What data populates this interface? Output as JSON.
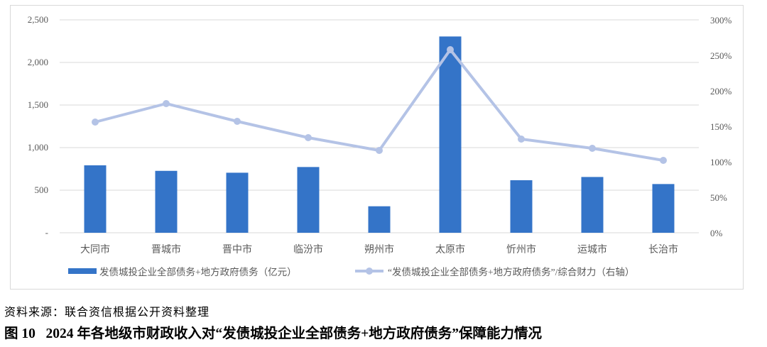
{
  "chart_data": {
    "type": "bar+line",
    "categories": [
      "大同市",
      "晋城市",
      "晋中市",
      "临汾市",
      "朔州市",
      "太原市",
      "忻州市",
      "运城市",
      "长治市"
    ],
    "series": [
      {
        "name": "发债城投企业全部债务+地方政府债务（亿元）",
        "type": "bar",
        "axis": "left",
        "color": "#3474c8",
        "values": [
          792,
          727,
          705,
          772,
          311,
          2305,
          617,
          655,
          572
        ]
      },
      {
        "name": "“发债城投企业全部债务+地方政府债务”/综合财力（右轴）",
        "type": "line",
        "axis": "right",
        "color": "#b4c3e6",
        "values": [
          156,
          182,
          157,
          134,
          116,
          258,
          132,
          119,
          102
        ]
      }
    ],
    "left_axis": {
      "ylim": [
        0,
        2500
      ],
      "ticks": [
        "-",
        "500",
        "1,000",
        "1,500",
        "2,000",
        "2,500"
      ]
    },
    "right_axis": {
      "ylim": [
        0,
        300
      ],
      "unit": "%",
      "ticks": [
        "0%",
        "50%",
        "100%",
        "150%",
        "200%",
        "250%",
        "300%"
      ]
    },
    "grid": true,
    "legend_placement": "bottom"
  },
  "source": "资料来源：联合资信根据公开资料整理",
  "caption": "图 10   2024 年各地级市财政收入对“发债城投企业全部债务+地方政府债务”保障能力情况"
}
